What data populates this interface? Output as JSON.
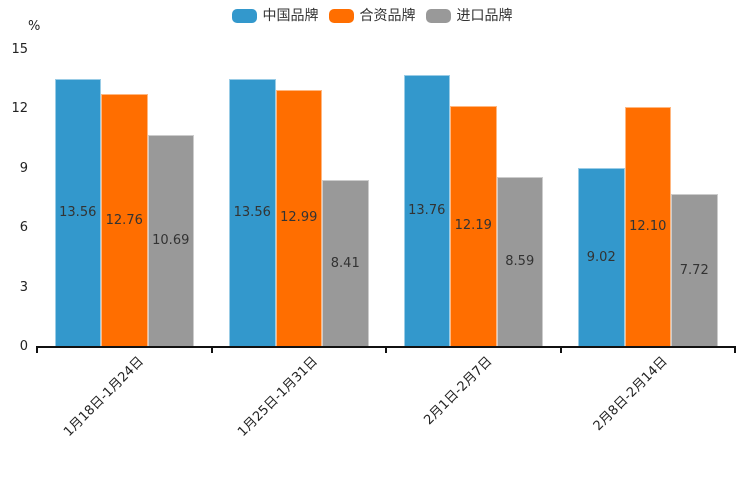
{
  "chart_data": {
    "type": "bar",
    "title": "",
    "unit_label": "%",
    "categories": [
      "1月18日-1月24日",
      "1月25日-1月31日",
      "2月1日-2月7日",
      "2月8日-2月14日"
    ],
    "series": [
      {
        "name": "中国品牌",
        "color": "#3398CC",
        "values": [
          13.56,
          13.56,
          13.76,
          9.02
        ]
      },
      {
        "name": "合资品牌",
        "color": "#FF6E00",
        "values": [
          12.76,
          12.99,
          12.19,
          12.1
        ]
      },
      {
        "name": "进口品牌",
        "color": "#999999",
        "values": [
          10.69,
          8.41,
          8.59,
          7.72
        ]
      }
    ],
    "value_labels": [
      "13.56",
      "12.76",
      "10.69",
      "13.56",
      "12.99",
      "8.41",
      "13.76",
      "12.19",
      "8.59",
      "9.02",
      "12.10",
      "7.72"
    ],
    "ylabel": "",
    "xlabel": "",
    "ylim": [
      0,
      15
    ],
    "yticks": [
      0,
      3,
      6,
      9,
      12,
      15
    ],
    "grid": false,
    "legend_position": "top",
    "value_label_position": "inside-middle",
    "axis_color": "#111111",
    "text_color": "#333333"
  }
}
